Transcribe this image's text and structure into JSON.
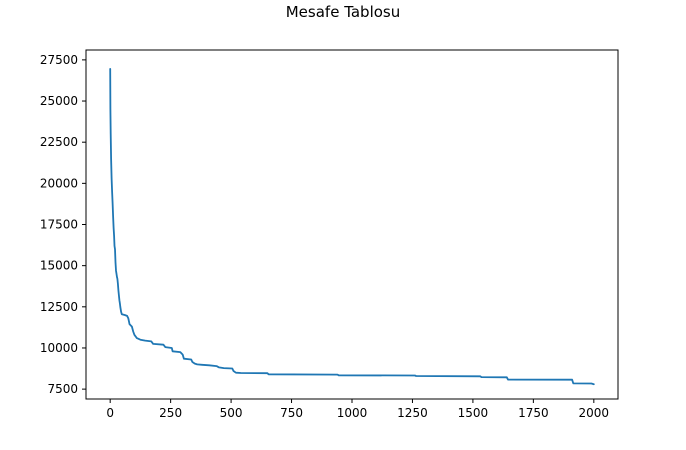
{
  "chart_data": {
    "type": "line",
    "title": "Mesafe Tablosu",
    "xlabel": "",
    "ylabel": "",
    "xlim": [
      -100,
      2100
    ],
    "ylim": [
      6900,
      28100
    ],
    "xticks": [
      0,
      250,
      500,
      750,
      1000,
      1250,
      1500,
      1750,
      2000
    ],
    "yticks": [
      7500,
      10000,
      12500,
      15000,
      17500,
      20000,
      22500,
      25000,
      27500
    ],
    "grid": false,
    "series": [
      {
        "color": "#1f77b4",
        "points": [
          [
            0,
            26950
          ],
          [
            1,
            24500
          ],
          [
            2,
            23000
          ],
          [
            4,
            21500
          ],
          [
            6,
            20300
          ],
          [
            8,
            19500
          ],
          [
            10,
            18800
          ],
          [
            12,
            18000
          ],
          [
            14,
            17300
          ],
          [
            16,
            16800
          ],
          [
            18,
            16200
          ],
          [
            20,
            16000
          ],
          [
            22,
            15200
          ],
          [
            24,
            14700
          ],
          [
            26,
            14500
          ],
          [
            28,
            14300
          ],
          [
            30,
            14200
          ],
          [
            32,
            13900
          ],
          [
            34,
            13500
          ],
          [
            36,
            13200
          ],
          [
            38,
            12900
          ],
          [
            40,
            12700
          ],
          [
            42,
            12500
          ],
          [
            45,
            12200
          ],
          [
            48,
            12050
          ],
          [
            60,
            12000
          ],
          [
            70,
            11950
          ],
          [
            75,
            11800
          ],
          [
            78,
            11600
          ],
          [
            80,
            11450
          ],
          [
            90,
            11300
          ],
          [
            95,
            11000
          ],
          [
            100,
            10800
          ],
          [
            105,
            10700
          ],
          [
            110,
            10600
          ],
          [
            125,
            10500
          ],
          [
            145,
            10450
          ],
          [
            170,
            10400
          ],
          [
            178,
            10250
          ],
          [
            220,
            10200
          ],
          [
            228,
            10050
          ],
          [
            255,
            10000
          ],
          [
            258,
            9800
          ],
          [
            290,
            9750
          ],
          [
            300,
            9600
          ],
          [
            305,
            9350
          ],
          [
            335,
            9300
          ],
          [
            340,
            9150
          ],
          [
            350,
            9050
          ],
          [
            360,
            9000
          ],
          [
            380,
            8980
          ],
          [
            410,
            8950
          ],
          [
            440,
            8900
          ],
          [
            450,
            8820
          ],
          [
            470,
            8780
          ],
          [
            505,
            8750
          ],
          [
            510,
            8600
          ],
          [
            520,
            8500
          ],
          [
            540,
            8480
          ],
          [
            650,
            8470
          ],
          [
            655,
            8400
          ],
          [
            940,
            8380
          ],
          [
            945,
            8340
          ],
          [
            1260,
            8330
          ],
          [
            1265,
            8300
          ],
          [
            1530,
            8280
          ],
          [
            1535,
            8230
          ],
          [
            1640,
            8220
          ],
          [
            1645,
            8080
          ],
          [
            1910,
            8070
          ],
          [
            1915,
            7850
          ],
          [
            1990,
            7840
          ],
          [
            2000,
            7800
          ]
        ]
      }
    ]
  }
}
